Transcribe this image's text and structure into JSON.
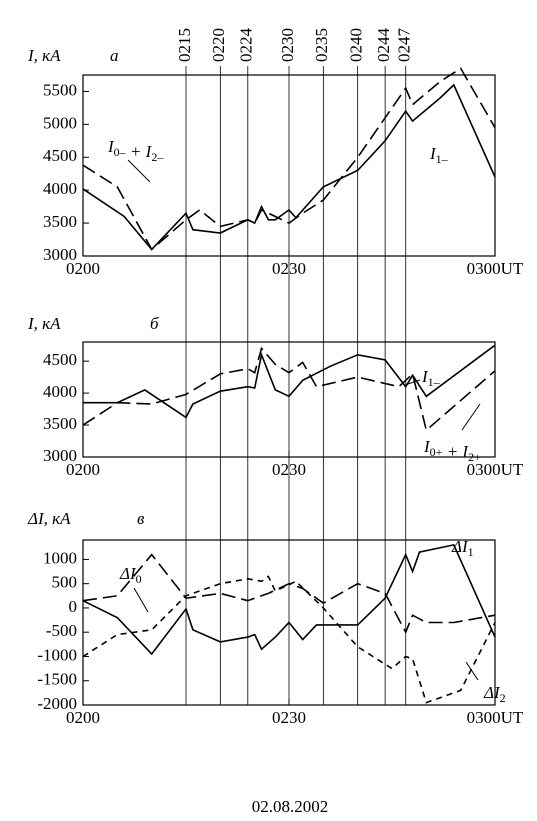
{
  "chart_data": [
    {
      "type": "line",
      "panel": "а",
      "ylabel": "I, кА",
      "xlim": [
        0,
        60
      ],
      "xticks": [
        {
          "value": 0,
          "label": "0200"
        },
        {
          "value": 30,
          "label": "0230"
        },
        {
          "value": 60,
          "label": "0300UT"
        }
      ],
      "ylim": [
        3000,
        5750
      ],
      "yticks": [
        3000,
        3500,
        4000,
        4500,
        5000,
        5500
      ],
      "vlines": [
        {
          "value": 15,
          "label": "0215"
        },
        {
          "value": 20,
          "label": "0220"
        },
        {
          "value": 24,
          "label": "0224"
        },
        {
          "value": 30,
          "label": "0230"
        },
        {
          "value": 35,
          "label": "0235"
        },
        {
          "value": 40,
          "label": "0240"
        },
        {
          "value": 44,
          "label": "0244"
        },
        {
          "value": 47,
          "label": "0247"
        }
      ],
      "series": [
        {
          "label": [
            [
              "I",
              "1–"
            ]
          ],
          "color": "#000",
          "dash": "solid",
          "x": [
            0,
            6,
            10,
            15,
            16,
            20,
            24,
            25,
            26,
            27,
            28,
            30,
            31,
            35,
            40,
            44,
            47,
            48,
            52,
            54,
            60
          ],
          "values": [
            4020,
            3600,
            3100,
            3650,
            3400,
            3350,
            3550,
            3500,
            3750,
            3550,
            3550,
            3700,
            3580,
            4050,
            4300,
            4750,
            5200,
            5050,
            5400,
            5600,
            4200
          ]
        },
        {
          "label": [
            [
              "I",
              "0–"
            ],
            [
              " + I",
              "2–"
            ]
          ],
          "color": "#000",
          "dash": "long",
          "x": [
            0,
            5,
            10,
            15,
            17,
            20,
            24,
            25,
            26,
            28,
            30,
            32,
            35,
            40,
            45,
            47,
            48,
            52,
            55,
            60
          ],
          "values": [
            4380,
            4050,
            3100,
            3550,
            3700,
            3450,
            3550,
            3500,
            3700,
            3600,
            3500,
            3650,
            3850,
            4500,
            5250,
            5550,
            5300,
            5650,
            5850,
            4950
          ]
        }
      ]
    },
    {
      "type": "line",
      "panel": "б",
      "ylabel": "I, кА",
      "xlim": [
        0,
        60
      ],
      "xticks": [
        {
          "value": 0,
          "label": "0200"
        },
        {
          "value": 30,
          "label": "0230"
        },
        {
          "value": 60,
          "label": "0300UT"
        }
      ],
      "ylim": [
        3000,
        4800
      ],
      "yticks": [
        3000,
        3500,
        4000,
        4500
      ],
      "series": [
        {
          "label": [
            [
              "I",
              "1–"
            ]
          ],
          "color": "#000",
          "dash": "solid",
          "x": [
            0,
            5,
            9,
            15,
            16,
            20,
            24,
            25,
            26,
            28,
            30,
            32,
            36,
            40,
            44,
            47,
            48,
            50,
            60
          ],
          "values": [
            3850,
            3850,
            4050,
            3620,
            3830,
            4030,
            4100,
            4080,
            4600,
            4050,
            3950,
            4200,
            4420,
            4600,
            4520,
            4100,
            4280,
            3950,
            4750
          ]
        },
        {
          "label": [
            [
              "I",
              "0+"
            ],
            [
              " + I",
              "2+"
            ]
          ],
          "color": "#000",
          "dash": "long",
          "x": [
            0,
            5,
            10,
            15,
            20,
            24,
            25,
            26,
            28,
            30,
            32,
            34,
            40,
            46,
            48,
            50,
            60
          ],
          "values": [
            3500,
            3850,
            3830,
            3980,
            4300,
            4380,
            4320,
            4700,
            4450,
            4320,
            4480,
            4100,
            4250,
            4100,
            4300,
            3420,
            4350
          ]
        }
      ]
    },
    {
      "type": "line",
      "panel": "в",
      "ylabel": "ΔI, кА",
      "xlabel": "02.08.2002",
      "xlim": [
        0,
        60
      ],
      "xticks": [
        {
          "value": 0,
          "label": "0200"
        },
        {
          "value": 30,
          "label": "0230"
        },
        {
          "value": 60,
          "label": "0300UT"
        }
      ],
      "ylim": [
        -2000,
        1400
      ],
      "yticks": [
        -2000,
        -1500,
        -1000,
        -500,
        0,
        500,
        1000
      ],
      "series": [
        {
          "label": [
            [
              "ΔI",
              "0"
            ]
          ],
          "color": "#000",
          "dash": "long",
          "x": [
            0,
            5,
            10,
            15,
            20,
            24,
            25,
            27,
            30,
            32,
            35,
            40,
            44,
            47,
            48,
            50,
            54,
            60
          ],
          "values": [
            150,
            250,
            1100,
            200,
            300,
            150,
            200,
            300,
            500,
            400,
            100,
            500,
            300,
            -500,
            -150,
            -300,
            -300,
            -150
          ]
        },
        {
          "label": [
            [
              "ΔI",
              "1"
            ]
          ],
          "color": "#000",
          "dash": "solid",
          "x": [
            0,
            5,
            10,
            15,
            16,
            20,
            24,
            25,
            26,
            28,
            30,
            32,
            34,
            40,
            44,
            47,
            48,
            49,
            54,
            60
          ],
          "values": [
            150,
            -200,
            -950,
            -20,
            -450,
            -700,
            -600,
            -550,
            -850,
            -600,
            -300,
            -650,
            -350,
            -350,
            200,
            1100,
            750,
            1150,
            1300,
            -600
          ]
        },
        {
          "label": [
            [
              "ΔI",
              "2"
            ]
          ],
          "color": "#000",
          "dash": "short",
          "x": [
            0,
            5,
            10,
            15,
            20,
            24,
            26,
            27,
            28,
            31,
            35,
            40,
            45,
            47,
            48,
            50,
            55,
            60
          ],
          "values": [
            -1000,
            -550,
            -450,
            250,
            500,
            600,
            550,
            650,
            350,
            550,
            0,
            -800,
            -1250,
            -1000,
            -1050,
            -1950,
            -1700,
            -300
          ]
        }
      ]
    }
  ]
}
